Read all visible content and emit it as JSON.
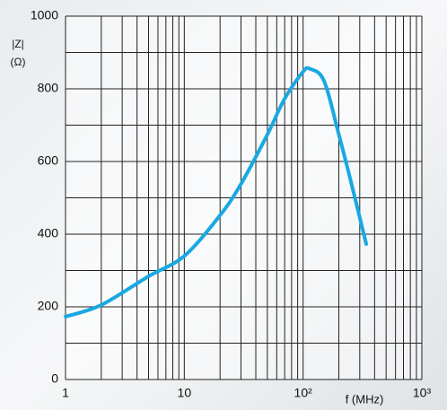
{
  "chart_data": {
    "type": "line",
    "y_label_lines": [
      "|Z|",
      "(Ω)"
    ],
    "x_label": "f (MHz)",
    "xscale": "log",
    "xlim": [
      1,
      1000
    ],
    "ylim": [
      0,
      1000
    ],
    "xticks": [
      1,
      10,
      {
        "value": 100,
        "label": "10²"
      },
      {
        "value": 1000,
        "label": "10³"
      }
    ],
    "yticks": [
      0,
      200,
      400,
      600,
      800,
      1000
    ],
    "xgrid": [
      1,
      2,
      3,
      4,
      5,
      6,
      7,
      8,
      9,
      10,
      20,
      30,
      40,
      50,
      60,
      70,
      80,
      90,
      100,
      200,
      300,
      400,
      500,
      600,
      700,
      800,
      900,
      1000
    ],
    "ygrid": [
      0,
      100,
      200,
      300,
      400,
      500,
      600,
      700,
      800,
      900,
      1000
    ],
    "grid": true,
    "series": [
      {
        "name": "|Z|",
        "color": "#19a8e2",
        "x": [
          1,
          2,
          5,
          10,
          20,
          30,
          50,
          70,
          100,
          114,
          150,
          200,
          250,
          340
        ],
        "values": [
          173,
          205,
          284,
          340,
          452,
          538,
          674,
          773,
          847,
          855,
          822,
          674,
          551,
          373
        ]
      }
    ]
  }
}
